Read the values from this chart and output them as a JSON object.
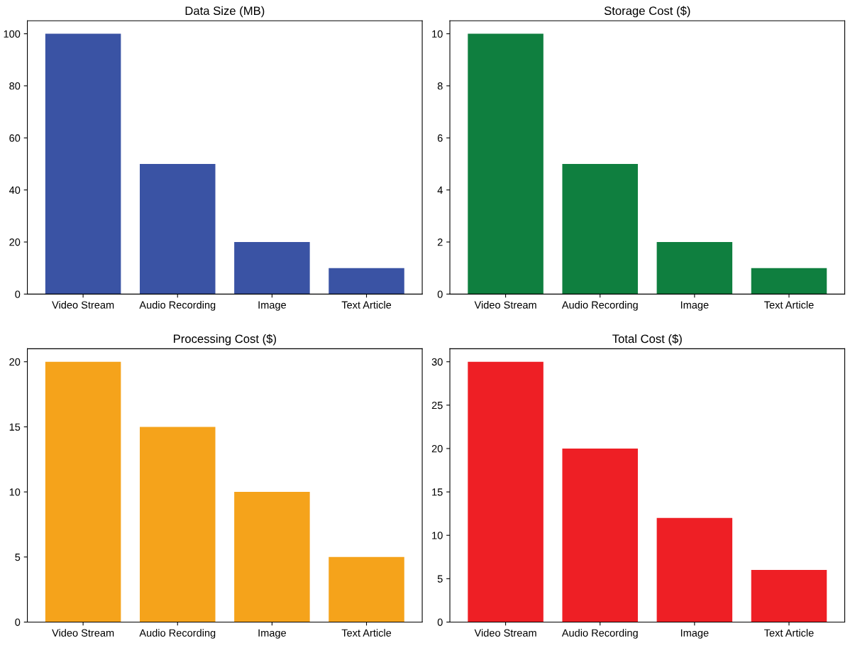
{
  "chart_data": [
    {
      "type": "bar",
      "title": "Data Size (MB)",
      "categories": [
        "Video Stream",
        "Audio Recording",
        "Image",
        "Text Article"
      ],
      "values": [
        100,
        50,
        20,
        10
      ],
      "color": "#3a53a4",
      "ylim": [
        0,
        105
      ],
      "yticks": [
        0,
        20,
        40,
        60,
        80,
        100
      ]
    },
    {
      "type": "bar",
      "title": "Storage Cost ($)",
      "categories": [
        "Video Stream",
        "Audio Recording",
        "Image",
        "Text Article"
      ],
      "values": [
        10,
        5,
        2,
        1
      ],
      "color": "#0f7f3f",
      "ylim": [
        0,
        10.5
      ],
      "yticks": [
        0,
        2,
        4,
        6,
        8,
        10
      ]
    },
    {
      "type": "bar",
      "title": "Processing Cost ($)",
      "categories": [
        "Video Stream",
        "Audio Recording",
        "Image",
        "Text Article"
      ],
      "values": [
        20,
        15,
        10,
        5
      ],
      "color": "#f5a31b",
      "ylim": [
        0,
        21
      ],
      "yticks": [
        0,
        5,
        10,
        15,
        20
      ]
    },
    {
      "type": "bar",
      "title": "Total Cost ($)",
      "categories": [
        "Video Stream",
        "Audio Recording",
        "Image",
        "Text Article"
      ],
      "values": [
        30,
        20,
        12,
        6
      ],
      "color": "#ee1f25",
      "ylim": [
        0,
        31.5
      ],
      "yticks": [
        0,
        5,
        10,
        15,
        20,
        25,
        30
      ]
    }
  ]
}
